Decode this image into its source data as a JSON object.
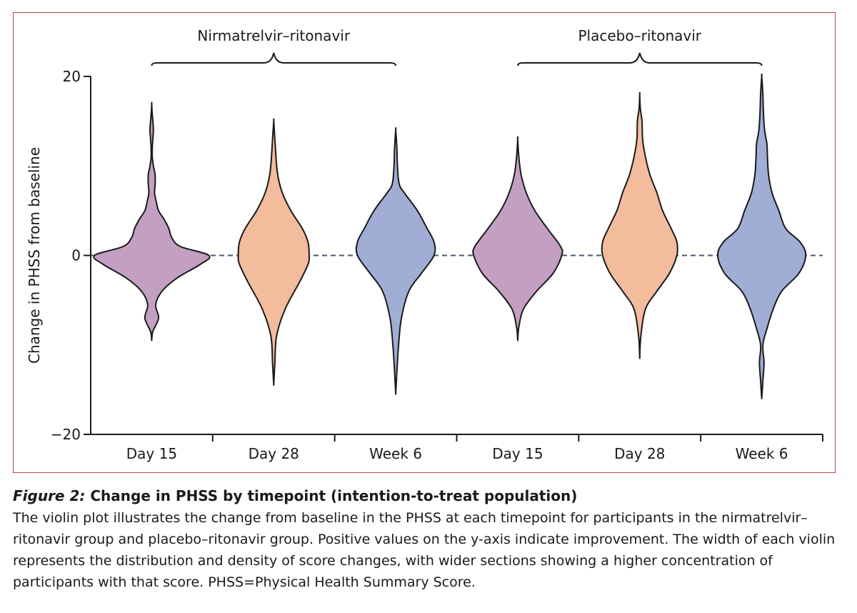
{
  "chart_data": {
    "type": "violin",
    "ylabel": "Change in PHSS from baseline",
    "ylim": [
      -20,
      20
    ],
    "yticks": [
      -20,
      0,
      20
    ],
    "reference_line": 0,
    "groups": [
      {
        "name": "Nirmatrelvir–ritonavir",
        "categories": [
          "Day 15",
          "Day 28",
          "Week 6"
        ]
      },
      {
        "name": "Placebo–ritonavir",
        "categories": [
          "Day 15",
          "Day 28",
          "Week 6"
        ]
      }
    ],
    "series_colors": {
      "Day 15": "#c3a0c2",
      "Day 28": "#f3bc9d",
      "Week 6": "#a0aed6"
    },
    "violins": [
      {
        "group": "Nirmatrelvir–ritonavir",
        "timepoint": "Day 15",
        "min": -9.5,
        "max": 17,
        "density": [
          [
            -9.5,
            0
          ],
          [
            -8.5,
            0.02
          ],
          [
            -7,
            0.12
          ],
          [
            -5.5,
            0.07
          ],
          [
            -4,
            0.18
          ],
          [
            -2.5,
            0.45
          ],
          [
            -1,
            0.85
          ],
          [
            0,
            1.0
          ],
          [
            1,
            0.5
          ],
          [
            2,
            0.35
          ],
          [
            3,
            0.3
          ],
          [
            4,
            0.22
          ],
          [
            5,
            0.12
          ],
          [
            6,
            0.08
          ],
          [
            7,
            0.05
          ],
          [
            8,
            0.06
          ],
          [
            9,
            0.06
          ],
          [
            10,
            0.03
          ],
          [
            11,
            0.01
          ],
          [
            12,
            0.01
          ],
          [
            13,
            0.02
          ],
          [
            14,
            0.03
          ],
          [
            15,
            0.02
          ],
          [
            16.2,
            0.005
          ],
          [
            17,
            0
          ]
        ]
      },
      {
        "group": "Nirmatrelvir–ritonavir",
        "timepoint": "Day 28",
        "min": -14.5,
        "max": 15,
        "density": [
          [
            -14.5,
            0
          ],
          [
            -12,
            0.02
          ],
          [
            -9,
            0.05
          ],
          [
            -6,
            0.2
          ],
          [
            -3,
            0.45
          ],
          [
            -1,
            0.6
          ],
          [
            0,
            0.62
          ],
          [
            1.5,
            0.6
          ],
          [
            3,
            0.5
          ],
          [
            5,
            0.3
          ],
          [
            7,
            0.15
          ],
          [
            9,
            0.07
          ],
          [
            11,
            0.04
          ],
          [
            13,
            0.02
          ],
          [
            15,
            0
          ]
        ]
      },
      {
        "group": "Nirmatrelvir–ritonavir",
        "timepoint": "Week 6",
        "min": -15.5,
        "max": 14,
        "density": [
          [
            -15.5,
            0
          ],
          [
            -13,
            0.02
          ],
          [
            -10,
            0.05
          ],
          [
            -7,
            0.1
          ],
          [
            -4,
            0.23
          ],
          [
            -2,
            0.45
          ],
          [
            0,
            0.67
          ],
          [
            1.5,
            0.67
          ],
          [
            3,
            0.55
          ],
          [
            5,
            0.38
          ],
          [
            7,
            0.15
          ],
          [
            8,
            0.06
          ],
          [
            10,
            0.03
          ],
          [
            12,
            0.02
          ],
          [
            14,
            0
          ]
        ]
      },
      {
        "group": "Placebo–ritonavir",
        "timepoint": "Day 15",
        "min": -9.5,
        "max": 13,
        "density": [
          [
            -9.5,
            0
          ],
          [
            -8,
            0.02
          ],
          [
            -6,
            0.1
          ],
          [
            -4,
            0.33
          ],
          [
            -2,
            0.62
          ],
          [
            0,
            0.77
          ],
          [
            1,
            0.75
          ],
          [
            3,
            0.52
          ],
          [
            5,
            0.3
          ],
          [
            7,
            0.15
          ],
          [
            9,
            0.06
          ],
          [
            11,
            0.02
          ],
          [
            13,
            0
          ]
        ]
      },
      {
        "group": "Placebo–ritonavir",
        "timepoint": "Day 28",
        "min": -11.5,
        "max": 18,
        "density": [
          [
            -11.5,
            0
          ],
          [
            -9,
            0.02
          ],
          [
            -6,
            0.1
          ],
          [
            -4,
            0.3
          ],
          [
            -2,
            0.52
          ],
          [
            0,
            0.65
          ],
          [
            1.5,
            0.65
          ],
          [
            3,
            0.55
          ],
          [
            5,
            0.4
          ],
          [
            7,
            0.3
          ],
          [
            9,
            0.18
          ],
          [
            11,
            0.1
          ],
          [
            13,
            0.05
          ],
          [
            15,
            0.04
          ],
          [
            16.5,
            0.01
          ],
          [
            18,
            0
          ]
        ]
      },
      {
        "group": "Placebo–ritonavir",
        "timepoint": "Week 6",
        "min": -16,
        "max": 20,
        "density": [
          [
            -16,
            0
          ],
          [
            -14,
            0.02
          ],
          [
            -12,
            0.04
          ],
          [
            -10,
            0.02
          ],
          [
            -8,
            0.1
          ],
          [
            -6,
            0.2
          ],
          [
            -4,
            0.35
          ],
          [
            -2,
            0.65
          ],
          [
            0,
            0.77
          ],
          [
            1.5,
            0.67
          ],
          [
            3,
            0.42
          ],
          [
            5,
            0.3
          ],
          [
            7,
            0.18
          ],
          [
            9,
            0.12
          ],
          [
            11,
            0.1
          ],
          [
            12.5,
            0.09
          ],
          [
            14,
            0.05
          ],
          [
            16,
            0.03
          ],
          [
            18,
            0.02
          ],
          [
            20,
            0
          ]
        ]
      }
    ]
  },
  "caption": {
    "fig_label": "Figure 2:",
    "title": " Change in PHSS by timepoint (intention-to-treat population)",
    "body": "The violin plot illustrates the change from baseline in the PHSS at each timepoint for participants in the nirmatrelvir–ritonavir group and placebo–ritonavir group. Positive values on the y-axis indicate improvement. The width of each violin represents the distribution and density of score changes, with wider sections showing a higher concentration of participants with that score. PHSS=Physical Health Summary Score."
  }
}
